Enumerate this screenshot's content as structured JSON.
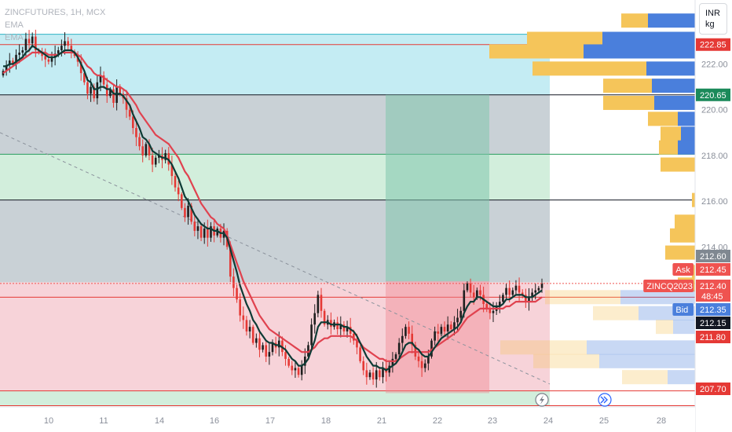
{
  "header": {
    "symbol_line": "ZINCFUTURES, 1H, MCX",
    "indicator_line_1": "EMA",
    "indicator_line_2": "EMA"
  },
  "unit_box": {
    "currency": "INR",
    "unit": "kg"
  },
  "price_axis": {
    "ticks": [
      "222.00",
      "220.00",
      "218.00",
      "216.00",
      "214.00"
    ],
    "tags": [
      {
        "label": "222.85",
        "color": "#e53935"
      },
      {
        "label": "220.65",
        "color": "#1b8a5a"
      },
      {
        "label": "212.60",
        "color": "#808891"
      },
      {
        "label": "Ask",
        "color": "#ef5350",
        "value": "212.45"
      },
      {
        "label": "ZINCQ2023",
        "color": "#ef5350",
        "value": "212.40",
        "countdown": "48:45"
      },
      {
        "label": "Bid",
        "color": "#4a7fdc",
        "value": "212.35"
      },
      {
        "label": "212.15",
        "color": "#131722"
      },
      {
        "label": "211.80",
        "color": "#e53935"
      },
      {
        "label": "207.70",
        "color": "#e53935"
      }
    ]
  },
  "time_axis": {
    "labels": [
      "10",
      "11",
      "14",
      "16",
      "17",
      "18",
      "21",
      "22",
      "23",
      "24",
      "25",
      "28"
    ]
  },
  "icons": [
    "lightning-icon",
    "fast-forward-icon"
  ],
  "colors": {
    "bull": "#1e1e1e",
    "bear": "#e53935",
    "ema_fast": "#0d3b35",
    "ema_slow": "#e0424f",
    "vp_up": "#4a7fdc",
    "vp_down": "#f5c55a"
  },
  "chart_data": {
    "type": "candlestick",
    "y_scale": {
      "min": 207.0,
      "max": 224.8
    },
    "horizontal_levels": [
      {
        "value": 223.3,
        "color": "#2fb2c4"
      },
      {
        "value": 222.85,
        "color": "#e53935"
      },
      {
        "value": 220.65,
        "color": "#131722"
      },
      {
        "value": 218.05,
        "color": "#2a9d5e"
      },
      {
        "value": 216.05,
        "color": "#131722"
      },
      {
        "value": 211.8,
        "color": "#e53935"
      },
      {
        "value": 207.7,
        "color": "#e53935"
      },
      {
        "value": 207.05,
        "color": "#e53935"
      }
    ],
    "zones": [
      {
        "from": 220.65,
        "to": 223.3,
        "color": "#c4ecf3"
      },
      {
        "from": 218.05,
        "to": 220.65,
        "color": "#c9d1d6"
      },
      {
        "from": 216.05,
        "to": 218.05,
        "color": "#d2eedc"
      },
      {
        "from": 212.45,
        "to": 216.05,
        "color": "#c9d1d6"
      },
      {
        "from": 207.7,
        "to": 212.45,
        "color": "#f7d3d9"
      },
      {
        "from": 207.05,
        "to": 207.7,
        "color": "#d2eedc"
      }
    ],
    "position_tool": {
      "entry": 212.5,
      "target": 220.65,
      "stop": 207.6,
      "x_from": 491,
      "x_to": 623
    },
    "close": [
      221.7,
      221.95,
      222.15,
      222.0,
      222.4,
      222.5,
      222.6,
      223.1,
      222.9,
      223.2,
      222.6,
      222.5,
      222.35,
      222.2,
      222.1,
      222.3,
      222.45,
      222.6,
      222.8,
      223.0,
      222.8,
      222.55,
      222.35,
      222.1,
      221.6,
      221.2,
      220.7,
      221.0,
      220.5,
      221.2,
      221.5,
      221.1,
      220.6,
      220.9,
      220.3,
      221.0,
      220.7,
      220.5,
      220.0,
      219.7,
      219.2,
      218.8,
      218.4,
      218.0,
      218.5,
      218.0,
      217.6,
      217.9,
      218.0,
      217.8,
      218.1,
      217.6,
      217.1,
      216.6,
      216.3,
      215.7,
      215.3,
      215.8,
      215.1,
      214.7,
      214.9,
      214.4,
      214.8,
      214.4,
      214.9,
      214.5,
      214.8,
      214.4,
      214.7,
      214.0,
      212.7,
      212.2,
      211.7,
      211.0,
      210.8,
      210.3,
      210.5,
      209.8,
      210.0,
      209.5,
      209.7,
      209.2,
      209.4,
      209.8,
      209.6,
      209.9,
      209.4,
      209.1,
      208.8,
      208.6,
      208.7,
      208.4,
      208.8,
      209.2,
      209.7,
      210.6,
      211.1,
      211.9,
      211.2,
      210.6,
      210.8,
      210.5,
      210.7,
      210.4,
      210.6,
      210.3,
      210.5,
      210.2,
      209.9,
      209.6,
      209.0,
      208.6,
      208.3,
      208.5,
      208.2,
      208.6,
      208.3,
      208.7,
      208.5,
      208.8,
      209.1,
      209.3,
      209.8,
      210.1,
      210.5,
      210.2,
      209.7,
      209.2,
      209.0,
      208.7,
      208.9,
      209.2,
      209.9,
      210.3,
      210.2,
      210.5,
      210.3,
      210.6,
      210.4,
      210.7,
      210.9,
      211.2,
      212.1,
      212.4,
      212.0,
      211.8,
      212.1,
      211.9,
      211.5,
      211.3,
      211.1,
      211.2,
      211.4,
      211.6,
      211.9,
      212.2,
      211.9,
      212.1,
      212.3,
      212.0,
      211.9,
      211.6,
      211.8,
      212.0,
      212.1,
      212.2,
      212.4
    ],
    "ema_fast": [
      221.9,
      221.9,
      222.0,
      222.0,
      222.1,
      222.2,
      222.3,
      222.5,
      222.6,
      222.8,
      222.7,
      222.6,
      222.5,
      222.4,
      222.3,
      222.3,
      222.3,
      222.4,
      222.5,
      222.6,
      222.6,
      222.6,
      222.5,
      222.3,
      222.0,
      221.7,
      221.3,
      221.2,
      220.9,
      220.9,
      221.0,
      221.0,
      220.9,
      220.9,
      220.7,
      220.7,
      220.7,
      220.6,
      220.4,
      220.2,
      219.8,
      219.5,
      219.2,
      218.8,
      218.7,
      218.5,
      218.2,
      218.1,
      218.0,
      217.9,
      217.9,
      217.8,
      217.6,
      217.3,
      217.0,
      216.6,
      216.2,
      216.0,
      215.7,
      215.4,
      215.2,
      215.0,
      214.9,
      214.8,
      214.8,
      214.7,
      214.7,
      214.6,
      214.6,
      214.4,
      213.9,
      213.4,
      212.9,
      212.3,
      211.9,
      211.5,
      211.2,
      210.8,
      210.6,
      210.3,
      210.1,
      209.9,
      209.8,
      209.8,
      209.7,
      209.7,
      209.6,
      209.5,
      209.3,
      209.1,
      209.0,
      208.8,
      208.8,
      208.9,
      209.1,
      209.5,
      209.9,
      210.5,
      210.7,
      210.7,
      210.7,
      210.6,
      210.6,
      210.6,
      210.6,
      210.5,
      210.5,
      210.4,
      210.3,
      210.1,
      209.8,
      209.5,
      209.2,
      209.0,
      208.8,
      208.8,
      208.7,
      208.7,
      208.6,
      208.7,
      208.8,
      208.9,
      209.1,
      209.4,
      209.7,
      209.8,
      209.8,
      209.6,
      209.5,
      209.3,
      209.2,
      209.2,
      209.4,
      209.6,
      209.8,
      210.0,
      210.1,
      210.2,
      210.3,
      210.4,
      210.5,
      210.7,
      211.1,
      211.4,
      211.6,
      211.6,
      211.8,
      211.8,
      211.7,
      211.6,
      211.5,
      211.4,
      211.4,
      211.4,
      211.5,
      211.7,
      211.7,
      211.8,
      211.9,
      211.9,
      211.9,
      211.8,
      211.8,
      211.8,
      211.9,
      212.0,
      212.1
    ],
    "ema_slow": [
      221.6,
      221.7,
      221.8,
      221.9,
      222.0,
      222.1,
      222.2,
      222.3,
      222.4,
      222.5,
      222.5,
      222.5,
      222.5,
      222.5,
      222.4,
      222.4,
      222.4,
      222.4,
      222.5,
      222.5,
      222.5,
      222.5,
      222.5,
      222.4,
      222.3,
      222.1,
      221.9,
      221.8,
      221.6,
      221.5,
      221.5,
      221.4,
      221.3,
      221.2,
      221.1,
      221.0,
      221.0,
      220.9,
      220.8,
      220.6,
      220.4,
      220.2,
      219.9,
      219.7,
      219.5,
      219.3,
      219.1,
      218.9,
      218.8,
      218.7,
      218.6,
      218.5,
      218.3,
      218.1,
      217.9,
      217.6,
      217.3,
      217.1,
      216.8,
      216.5,
      216.2,
      215.9,
      215.7,
      215.5,
      215.3,
      215.2,
      215.0,
      214.9,
      214.8,
      214.5,
      214.1,
      213.7,
      213.3,
      212.9,
      212.5,
      212.2,
      211.9,
      211.6,
      211.3,
      211.0,
      210.8,
      210.6,
      210.4,
      210.3,
      210.2,
      210.1,
      210.0,
      209.9,
      209.8,
      209.7,
      209.6,
      209.5,
      209.4,
      209.4,
      209.4,
      209.5,
      209.6,
      209.8,
      209.9,
      210.0,
      210.0,
      210.1,
      210.1,
      210.1,
      210.1,
      210.1,
      210.1,
      210.1,
      210.0,
      209.9,
      209.8,
      209.6,
      209.5,
      209.4,
      209.3,
      209.2,
      209.1,
      209.1,
      209.0,
      209.0,
      209.0,
      209.0,
      209.1,
      209.2,
      209.3,
      209.4,
      209.4,
      209.4,
      209.4,
      209.4,
      209.4,
      209.4,
      209.5,
      209.6,
      209.7,
      209.8,
      209.9,
      210.0,
      210.1,
      210.2,
      210.3,
      210.5,
      210.7,
      210.9,
      211.0,
      211.1,
      211.2,
      211.3,
      211.3,
      211.3,
      211.3,
      211.3,
      211.3,
      211.3,
      211.3,
      211.4,
      211.4,
      211.5,
      211.6,
      211.6,
      211.6,
      211.6,
      211.6,
      211.6,
      211.6,
      211.7,
      211.8
    ],
    "volume_profile": [
      {
        "price": 223.9,
        "up": 60,
        "down": 34
      },
      {
        "price": 223.1,
        "up": 118,
        "down": 96
      },
      {
        "price": 222.55,
        "up": 142,
        "down": 120
      },
      {
        "price": 221.8,
        "up": 62,
        "down": 145
      },
      {
        "price": 221.05,
        "up": 55,
        "down": 62
      },
      {
        "price": 220.3,
        "up": 52,
        "down": 65
      },
      {
        "price": 219.6,
        "up": 22,
        "down": 38
      },
      {
        "price": 218.95,
        "up": 18,
        "down": 26
      },
      {
        "price": 218.35,
        "up": 22,
        "down": 24
      },
      {
        "price": 217.6,
        "up": 0,
        "down": 44
      },
      {
        "price": 216.05,
        "up": 0,
        "down": 4
      },
      {
        "price": 215.1,
        "up": 0,
        "down": 26
      },
      {
        "price": 214.5,
        "up": 0,
        "down": 32
      },
      {
        "price": 213.75,
        "up": 0,
        "down": 38
      },
      {
        "price": 212.9,
        "up": 0,
        "down": 4
      },
      {
        "price": 212.35,
        "up": 0,
        "down": 22
      },
      {
        "price": 211.8,
        "up": 95,
        "down": 96
      },
      {
        "price": 211.1,
        "up": 72,
        "down": 58
      },
      {
        "price": 210.5,
        "up": 28,
        "down": 22
      },
      {
        "price": 209.6,
        "up": 138,
        "down": 110
      },
      {
        "price": 209.0,
        "up": 122,
        "down": 84
      },
      {
        "price": 208.3,
        "up": 35,
        "down": 58
      }
    ]
  }
}
